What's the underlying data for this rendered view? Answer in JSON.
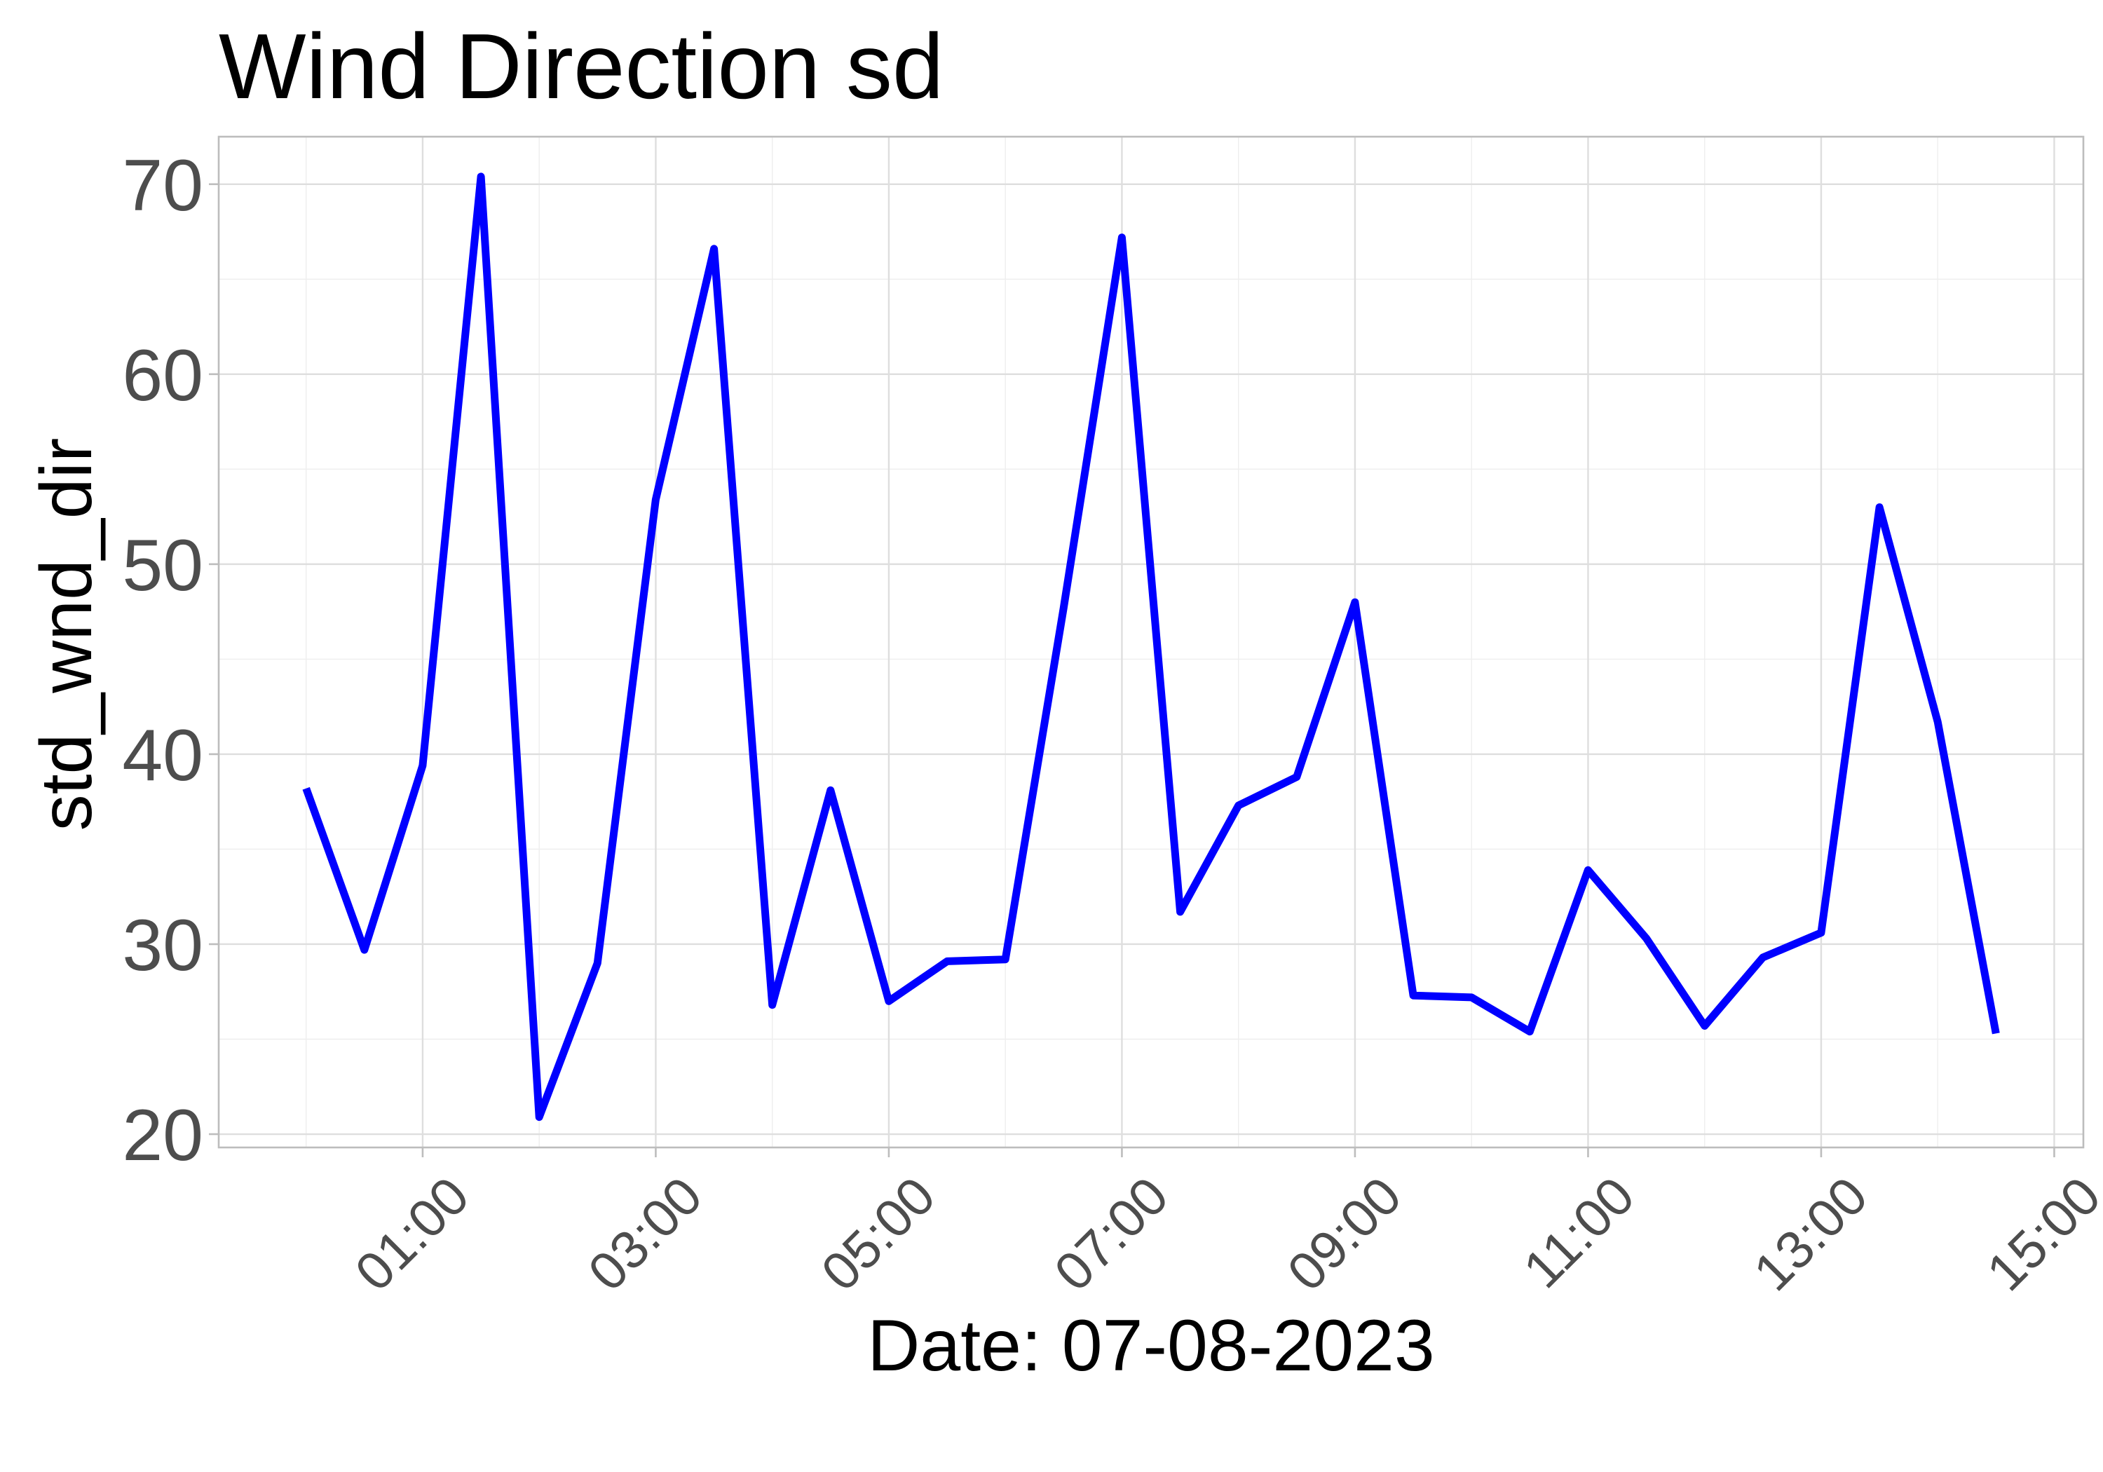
{
  "chart_data": {
    "type": "line",
    "title": "Wind Direction sd",
    "xlabel": "Date: 07-08-2023",
    "ylabel": "std_wnd_dir",
    "x_tick_labels": [
      "01:00",
      "03:00",
      "05:00",
      "07:00",
      "09:00",
      "11:00",
      "13:00",
      "15:00"
    ],
    "x_ticks": [
      "01:00",
      "03:00",
      "05:00",
      "07:00",
      "09:00",
      "11:00",
      "13:00",
      "15:00"
    ],
    "y_ticks": [
      20,
      30,
      40,
      50,
      60,
      70
    ],
    "xlim": [
      "23:15",
      "15:15"
    ],
    "ylim": [
      19.3,
      72.5
    ],
    "grid": true,
    "legend": "none",
    "series": [
      {
        "color": "#0000ff",
        "x": [
          "00:00",
          "00:30",
          "01:00",
          "01:30",
          "02:00",
          "02:30",
          "03:00",
          "03:30",
          "04:00",
          "04:30",
          "05:00",
          "05:30",
          "06:00",
          "06:30",
          "07:00",
          "07:30",
          "08:00",
          "08:30",
          "09:00",
          "09:30",
          "10:00",
          "10:30",
          "11:00",
          "11:30",
          "12:00",
          "12:30",
          "13:00",
          "13:30",
          "14:00",
          "14:30"
        ],
        "values": [
          38.2,
          29.7,
          39.4,
          70.4,
          20.9,
          29.0,
          53.4,
          66.6,
          26.8,
          38.1,
          27.0,
          29.1,
          29.2,
          47.7,
          67.2,
          31.7,
          37.3,
          38.8,
          48.0,
          27.3,
          27.2,
          25.4,
          33.9,
          30.3,
          25.7,
          29.3,
          30.6,
          53.0,
          41.7,
          25.3
        ]
      }
    ]
  }
}
